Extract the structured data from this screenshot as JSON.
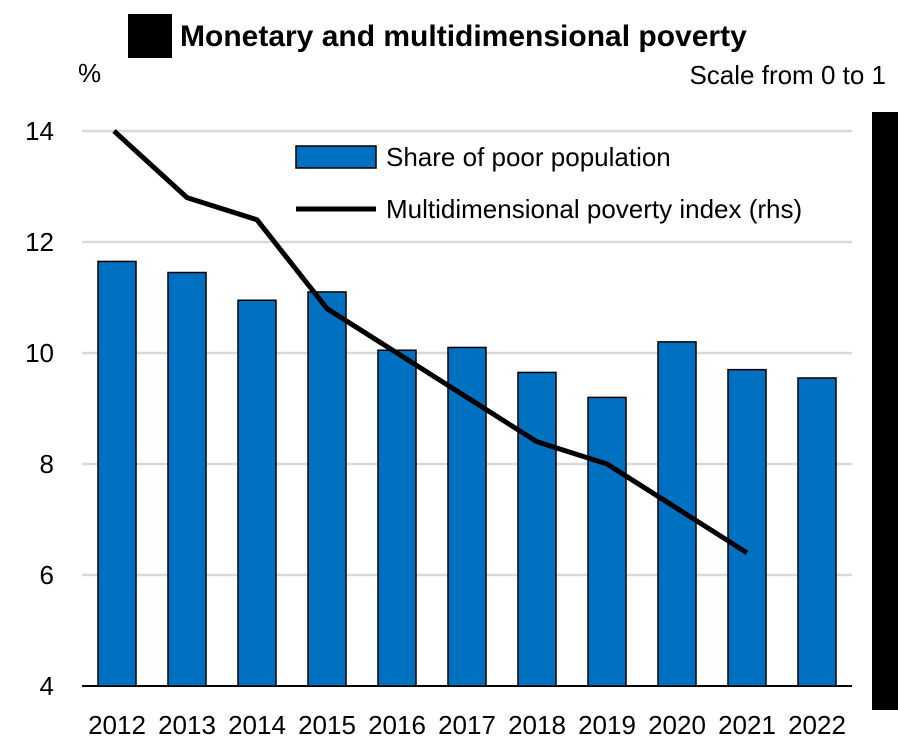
{
  "chart_data": {
    "type": "bar",
    "title": "Monetary and multidimensional poverty",
    "ylabel": "%",
    "y2label": "Scale from 0 to 1",
    "categories": [
      "2012",
      "2013",
      "2014",
      "2015",
      "2016",
      "2017",
      "2018",
      "2019",
      "2020",
      "2021",
      "2022"
    ],
    "ylim": [
      4,
      14
    ],
    "yticks": [
      4,
      6,
      8,
      10,
      12,
      14
    ],
    "grid": true,
    "legend_position": "top-right",
    "series": [
      {
        "name": "Share of poor population",
        "type": "bar",
        "axis": "left",
        "color": "#0070C0",
        "values": [
          11.65,
          11.45,
          10.95,
          11.1,
          10.05,
          10.1,
          9.65,
          9.2,
          10.2,
          9.7,
          9.55
        ]
      },
      {
        "name": "Multidimensional poverty index (rhs)",
        "type": "line",
        "axis": "right",
        "color": "#000000",
        "values": [
          14.0,
          12.8,
          12.4,
          10.8,
          10.0,
          9.2,
          8.4,
          8.0,
          7.2,
          6.4,
          null
        ]
      }
    ]
  }
}
